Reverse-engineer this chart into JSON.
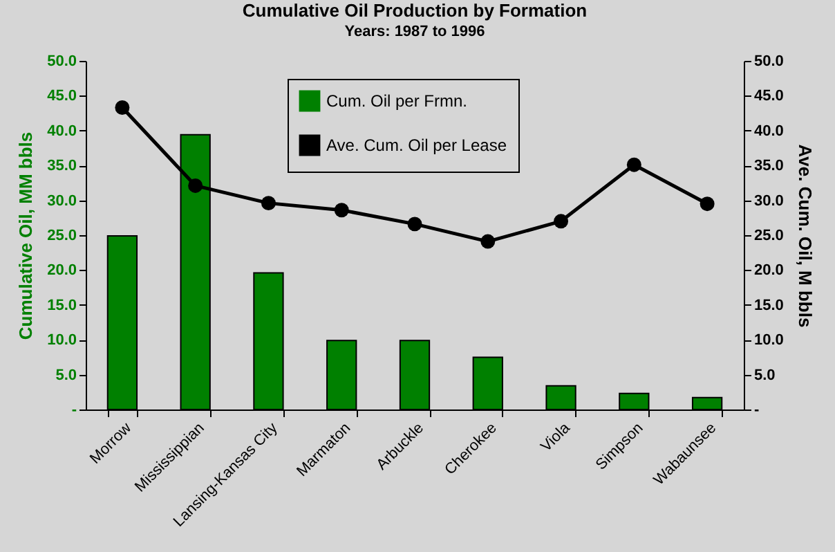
{
  "chart_data": {
    "type": "bar",
    "title": "Cumulative Oil Production by Formation",
    "subtitle": "Years: 1987 to 1996",
    "categories": [
      "Morrow",
      "Mississippian",
      "Lansing-Kansas City",
      "Marmaton",
      "Arbuckle",
      "Cherokee",
      "Viola",
      "Simpson",
      "Wabaunsee"
    ],
    "series": [
      {
        "name": "Cum. Oil per Frmn.",
        "color": "#008000",
        "values": [
          24.9,
          39.4,
          19.6,
          9.9,
          9.9,
          7.5,
          3.4,
          2.3,
          1.7
        ]
      },
      {
        "name": "Ave. Cum. Oil per Lease",
        "type": "line",
        "axis": "y2",
        "color": "#000000",
        "values": [
          43.3,
          32.1,
          29.6,
          28.6,
          26.6,
          24.1,
          27.0,
          35.1,
          29.5
        ]
      }
    ],
    "ylabel": "Cumulative Oil, MM bbls",
    "y2label": "Ave. Cum. Oil, M bbls",
    "ylim": [
      0,
      50
    ],
    "yticks": [
      {
        "value": 0,
        "label": "-"
      },
      {
        "value": 5,
        "label": "5.0"
      },
      {
        "value": 10,
        "label": "10.0"
      },
      {
        "value": 15,
        "label": "15.0"
      },
      {
        "value": 20,
        "label": "20.0"
      },
      {
        "value": 25,
        "label": "25.0"
      },
      {
        "value": 30,
        "label": "30.0"
      },
      {
        "value": 35,
        "label": "35.0"
      },
      {
        "value": 40,
        "label": "40.0"
      },
      {
        "value": 45,
        "label": "45.0"
      },
      {
        "value": 50,
        "label": "50.0"
      }
    ],
    "y2lim": [
      0,
      50
    ],
    "y2ticks": [
      {
        "value": 0,
        "label": "-"
      },
      {
        "value": 5,
        "label": "5.0"
      },
      {
        "value": 10,
        "label": "10.0"
      },
      {
        "value": 15,
        "label": "15.0"
      },
      {
        "value": 20,
        "label": "20.0"
      },
      {
        "value": 25,
        "label": "25.0"
      },
      {
        "value": 30,
        "label": "30.0"
      },
      {
        "value": 35,
        "label": "35.0"
      },
      {
        "value": 40,
        "label": "40.0"
      },
      {
        "value": 45,
        "label": "45.0"
      },
      {
        "value": 50,
        "label": "50.0"
      }
    ],
    "legend": "top",
    "marker": "circle"
  }
}
